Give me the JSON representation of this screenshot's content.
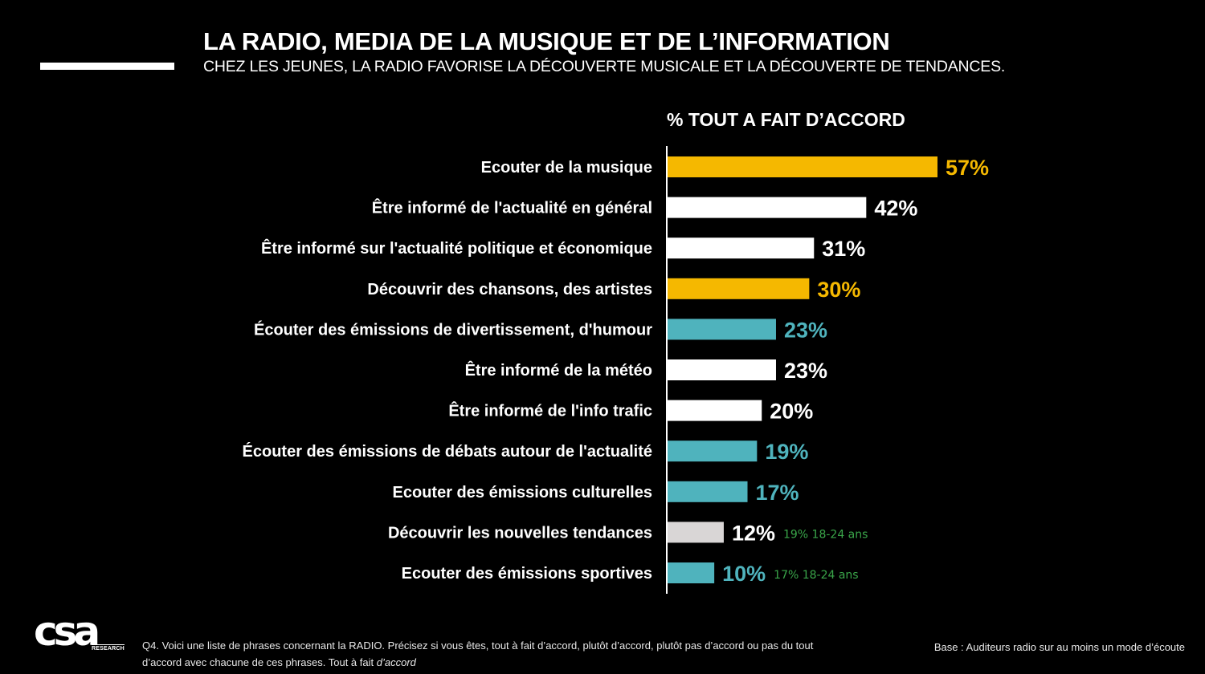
{
  "header": {
    "title": "LA RADIO, MEDIA DE LA MUSIQUE ET DE L’INFORMATION",
    "subtitle": "CHEZ LES JEUNES, LA RADIO FAVORISE LA DÉCOUVERTE MUSICALE ET LA DÉCOUVERTE DE TENDANCES."
  },
  "colors": {
    "background": "#000000",
    "music": "#f5b800",
    "info": "#ffffff",
    "programs": "#4fb3bd",
    "trends": "#d9d6d6",
    "note": "#3aa64a"
  },
  "chart_data": {
    "type": "bar",
    "orientation": "horizontal",
    "title": "% TOUT A FAIT D’ACCORD",
    "categories": [
      "Ecouter de la musique",
      "Être informé de l'actualité en général",
      "Être informé sur l'actualité politique et économique",
      "Découvrir des chansons, des artistes",
      "Écouter des émissions de divertissement, d'humour",
      "Être informé de la météo",
      "Être informé de l'info trafic",
      "Écouter des émissions de débats autour de l'actualité",
      "Ecouter des émissions culturelles",
      "Découvrir les nouvelles tendances",
      "Ecouter des émissions sportives"
    ],
    "values": [
      57,
      42,
      31,
      30,
      23,
      23,
      20,
      19,
      17,
      12,
      10
    ],
    "value_labels": [
      "57%",
      "42%",
      "31%",
      "30%",
      "23%",
      "23%",
      "20%",
      "19%",
      "17%",
      "12%",
      "10%"
    ],
    "bar_colors": [
      "#f5b800",
      "#ffffff",
      "#ffffff",
      "#f5b800",
      "#4fb3bd",
      "#ffffff",
      "#ffffff",
      "#4fb3bd",
      "#4fb3bd",
      "#d9d6d6",
      "#4fb3bd"
    ],
    "label_colors": [
      "#f5b800",
      "#ffffff",
      "#ffffff",
      "#f5b800",
      "#4fb3bd",
      "#ffffff",
      "#ffffff",
      "#4fb3bd",
      "#4fb3bd",
      "#ffffff",
      "#4fb3bd"
    ],
    "annotations": [
      "",
      "",
      "",
      "",
      "",
      "",
      "",
      "",
      "",
      "19% 18-24 ans",
      "17% 18-24 ans"
    ],
    "xlim": [
      0,
      57
    ],
    "grid": false
  },
  "footer": {
    "question": "Q4. Voici une liste de phrases concernant la RADIO. Précisez si vous êtes, tout à fait d’accord, plutôt d’accord, plutôt pas d’accord ou pas du tout d’accord avec chacune de ces phrases. Tout à fait",
    "question_italic": "d’accord",
    "base": "Base : Auditeurs radio sur au moins un mode d’écoute"
  },
  "logo": {
    "text": "csa",
    "subtext": "RESEARCH"
  }
}
